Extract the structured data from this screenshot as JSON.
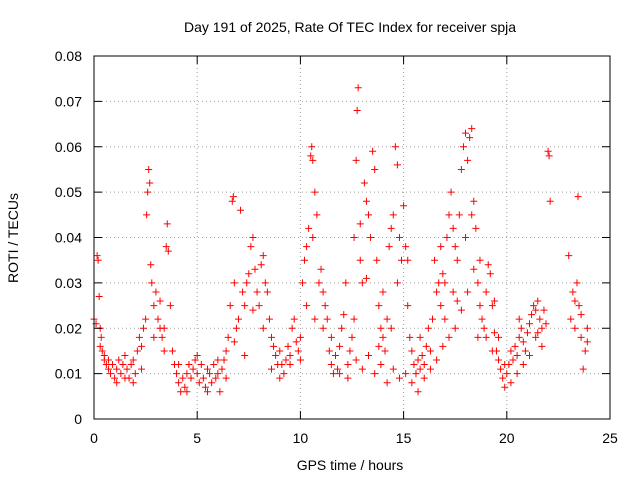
{
  "chart_data": {
    "type": "scatter",
    "title": "Day 191 of 2025, Rate Of TEC Index for receiver spja",
    "xlabel": "GPS time / hours",
    "ylabel": "ROTI / TECUs",
    "xlim": [
      0,
      25
    ],
    "ylim": [
      0,
      0.08
    ],
    "x_ticks": [
      0,
      5,
      10,
      15,
      20,
      25
    ],
    "y_ticks": [
      0,
      0.01,
      0.02,
      0.03,
      0.04,
      0.05,
      0.06,
      0.07,
      0.08
    ],
    "x_tick_labels": [
      "0",
      "5",
      "10",
      "15",
      "20",
      "25"
    ],
    "y_tick_labels": [
      "0",
      "0.01",
      "0.02",
      "0.03",
      "0.04",
      "0.05",
      "0.06",
      "0.07",
      "0.08"
    ],
    "grid": true,
    "marker": "plus",
    "color": "#ff0000",
    "points": [
      [
        0.0,
        0.022
      ],
      [
        0.1,
        0.021
      ],
      [
        0.15,
        0.036
      ],
      [
        0.2,
        0.035
      ],
      [
        0.25,
        0.027
      ],
      [
        0.3,
        0.02
      ],
      [
        0.35,
        0.018
      ],
      [
        0.4,
        0.015
      ],
      [
        0.5,
        0.013
      ],
      [
        0.6,
        0.012
      ],
      [
        0.7,
        0.011
      ],
      [
        0.8,
        0.01
      ],
      [
        0.9,
        0.012
      ],
      [
        1.0,
        0.009
      ],
      [
        1.1,
        0.011
      ],
      [
        1.2,
        0.013
      ],
      [
        1.3,
        0.01
      ],
      [
        1.4,
        0.012
      ],
      [
        1.5,
        0.014
      ],
      [
        1.6,
        0.011
      ],
      [
        1.7,
        0.009
      ],
      [
        1.8,
        0.012
      ],
      [
        1.9,
        0.013
      ],
      [
        2.0,
        0.01
      ],
      [
        2.1,
        0.015
      ],
      [
        2.2,
        0.018
      ],
      [
        2.3,
        0.016
      ],
      [
        2.4,
        0.02
      ],
      [
        2.5,
        0.022
      ],
      [
        2.55,
        0.045
      ],
      [
        2.6,
        0.05
      ],
      [
        2.65,
        0.055
      ],
      [
        2.7,
        0.052
      ],
      [
        2.75,
        0.034
      ],
      [
        2.8,
        0.03
      ],
      [
        2.9,
        0.025
      ],
      [
        3.0,
        0.028
      ],
      [
        3.1,
        0.022
      ],
      [
        3.2,
        0.02
      ],
      [
        3.3,
        0.018
      ],
      [
        3.4,
        0.015
      ],
      [
        3.5,
        0.038
      ],
      [
        3.55,
        0.043
      ],
      [
        3.6,
        0.037
      ],
      [
        3.7,
        0.025
      ],
      [
        3.8,
        0.015
      ],
      [
        3.9,
        0.012
      ],
      [
        4.0,
        0.01
      ],
      [
        4.1,
        0.008
      ],
      [
        4.2,
        0.006
      ],
      [
        4.3,
        0.009
      ],
      [
        4.4,
        0.007
      ],
      [
        4.5,
        0.01
      ],
      [
        4.6,
        0.012
      ],
      [
        4.7,
        0.009
      ],
      [
        4.8,
        0.011
      ],
      [
        4.9,
        0.013
      ],
      [
        5.0,
        0.01
      ],
      [
        5.1,
        0.008
      ],
      [
        5.2,
        0.012
      ],
      [
        5.3,
        0.009
      ],
      [
        5.4,
        0.007
      ],
      [
        5.5,
        0.011
      ],
      [
        5.6,
        0.01
      ],
      [
        5.7,
        0.008
      ],
      [
        5.8,
        0.012
      ],
      [
        5.9,
        0.009
      ],
      [
        6.0,
        0.01
      ],
      [
        6.1,
        0.006
      ],
      [
        6.2,
        0.011
      ],
      [
        6.3,
        0.013
      ],
      [
        6.4,
        0.015
      ],
      [
        6.5,
        0.018
      ],
      [
        6.6,
        0.025
      ],
      [
        6.7,
        0.048
      ],
      [
        6.75,
        0.049
      ],
      [
        6.8,
        0.03
      ],
      [
        6.9,
        0.02
      ],
      [
        7.0,
        0.022
      ],
      [
        7.1,
        0.046
      ],
      [
        7.2,
        0.028
      ],
      [
        7.3,
        0.025
      ],
      [
        7.4,
        0.03
      ],
      [
        7.5,
        0.032
      ],
      [
        7.6,
        0.038
      ],
      [
        7.7,
        0.04
      ],
      [
        7.8,
        0.033
      ],
      [
        7.9,
        0.028
      ],
      [
        8.0,
        0.025
      ],
      [
        8.1,
        0.034
      ],
      [
        8.2,
        0.036
      ],
      [
        8.3,
        0.03
      ],
      [
        8.4,
        0.028
      ],
      [
        8.5,
        0.022
      ],
      [
        8.6,
        0.018
      ],
      [
        8.7,
        0.016
      ],
      [
        8.8,
        0.014
      ],
      [
        8.9,
        0.012
      ],
      [
        9.0,
        0.015
      ],
      [
        9.1,
        0.012
      ],
      [
        9.2,
        0.01
      ],
      [
        9.3,
        0.013
      ],
      [
        9.4,
        0.016
      ],
      [
        9.5,
        0.014
      ],
      [
        9.6,
        0.02
      ],
      [
        9.7,
        0.022
      ],
      [
        9.8,
        0.017
      ],
      [
        9.9,
        0.015
      ],
      [
        10.0,
        0.013
      ],
      [
        10.1,
        0.03
      ],
      [
        10.2,
        0.035
      ],
      [
        10.3,
        0.038
      ],
      [
        10.4,
        0.042
      ],
      [
        10.5,
        0.058
      ],
      [
        10.55,
        0.06
      ],
      [
        10.6,
        0.057
      ],
      [
        10.7,
        0.05
      ],
      [
        10.8,
        0.045
      ],
      [
        10.9,
        0.03
      ],
      [
        11.0,
        0.033
      ],
      [
        11.1,
        0.028
      ],
      [
        11.2,
        0.025
      ],
      [
        11.3,
        0.022
      ],
      [
        11.4,
        0.015
      ],
      [
        11.5,
        0.012
      ],
      [
        11.6,
        0.01
      ],
      [
        11.7,
        0.014
      ],
      [
        11.8,
        0.011
      ],
      [
        11.9,
        0.016
      ],
      [
        12.0,
        0.02
      ],
      [
        12.1,
        0.023
      ],
      [
        12.2,
        0.03
      ],
      [
        12.3,
        0.012
      ],
      [
        12.4,
        0.015
      ],
      [
        12.5,
        0.018
      ],
      [
        12.6,
        0.04
      ],
      [
        12.7,
        0.057
      ],
      [
        12.75,
        0.068
      ],
      [
        12.8,
        0.073
      ],
      [
        12.9,
        0.035
      ],
      [
        13.0,
        0.03
      ],
      [
        13.1,
        0.052
      ],
      [
        13.2,
        0.048
      ],
      [
        13.3,
        0.045
      ],
      [
        13.4,
        0.04
      ],
      [
        13.5,
        0.059
      ],
      [
        13.6,
        0.055
      ],
      [
        13.7,
        0.035
      ],
      [
        13.8,
        0.025
      ],
      [
        13.9,
        0.02
      ],
      [
        14.0,
        0.018
      ],
      [
        14.1,
        0.015
      ],
      [
        14.2,
        0.022
      ],
      [
        14.3,
        0.038
      ],
      [
        14.4,
        0.042
      ],
      [
        14.5,
        0.045
      ],
      [
        14.6,
        0.06
      ],
      [
        14.7,
        0.056
      ],
      [
        14.8,
        0.04
      ],
      [
        14.9,
        0.035
      ],
      [
        15.0,
        0.047
      ],
      [
        15.1,
        0.038
      ],
      [
        15.2,
        0.025
      ],
      [
        15.3,
        0.018
      ],
      [
        15.4,
        0.015
      ],
      [
        15.5,
        0.012
      ],
      [
        15.6,
        0.01
      ],
      [
        15.7,
        0.013
      ],
      [
        15.8,
        0.011
      ],
      [
        15.9,
        0.014
      ],
      [
        16.0,
        0.012
      ],
      [
        16.1,
        0.016
      ],
      [
        16.2,
        0.02
      ],
      [
        16.3,
        0.015
      ],
      [
        16.4,
        0.022
      ],
      [
        16.5,
        0.035
      ],
      [
        16.6,
        0.028
      ],
      [
        16.7,
        0.03
      ],
      [
        16.8,
        0.038
      ],
      [
        16.9,
        0.032
      ],
      [
        17.0,
        0.03
      ],
      [
        17.1,
        0.04
      ],
      [
        17.2,
        0.045
      ],
      [
        17.3,
        0.05
      ],
      [
        17.4,
        0.042
      ],
      [
        17.5,
        0.038
      ],
      [
        17.6,
        0.035
      ],
      [
        17.7,
        0.045
      ],
      [
        17.8,
        0.055
      ],
      [
        17.9,
        0.06
      ],
      [
        18.0,
        0.063
      ],
      [
        18.1,
        0.057
      ],
      [
        18.2,
        0.062
      ],
      [
        18.3,
        0.064
      ],
      [
        18.4,
        0.048
      ],
      [
        18.5,
        0.042
      ],
      [
        18.6,
        0.03
      ],
      [
        18.7,
        0.025
      ],
      [
        18.8,
        0.022
      ],
      [
        18.9,
        0.02
      ],
      [
        19.0,
        0.018
      ],
      [
        19.1,
        0.034
      ],
      [
        19.2,
        0.032
      ],
      [
        19.3,
        0.025
      ],
      [
        19.4,
        0.019
      ],
      [
        19.5,
        0.015
      ],
      [
        19.6,
        0.013
      ],
      [
        19.7,
        0.011
      ],
      [
        19.8,
        0.009
      ],
      [
        19.9,
        0.007
      ],
      [
        20.0,
        0.01
      ],
      [
        20.1,
        0.012
      ],
      [
        20.2,
        0.015
      ],
      [
        20.3,
        0.013
      ],
      [
        20.4,
        0.016
      ],
      [
        20.5,
        0.014
      ],
      [
        20.6,
        0.018
      ],
      [
        20.7,
        0.02
      ],
      [
        20.8,
        0.017
      ],
      [
        20.9,
        0.015
      ],
      [
        21.0,
        0.019
      ],
      [
        21.1,
        0.021
      ],
      [
        21.2,
        0.023
      ],
      [
        21.3,
        0.025
      ],
      [
        21.4,
        0.024
      ],
      [
        21.5,
        0.026
      ],
      [
        21.6,
        0.022
      ],
      [
        21.7,
        0.02
      ],
      [
        21.8,
        0.024
      ],
      [
        21.9,
        0.021
      ],
      [
        22.0,
        0.059
      ],
      [
        22.05,
        0.058
      ],
      [
        22.1,
        0.048
      ],
      [
        23.0,
        0.036
      ],
      [
        23.1,
        0.022
      ],
      [
        23.2,
        0.028
      ],
      [
        23.3,
        0.026
      ],
      [
        23.4,
        0.03
      ],
      [
        23.45,
        0.049
      ],
      [
        23.5,
        0.025
      ],
      [
        23.6,
        0.018
      ],
      [
        23.7,
        0.011
      ],
      [
        23.8,
        0.015
      ],
      [
        23.9,
        0.02
      ],
      [
        0.3,
        0.016
      ],
      [
        0.5,
        0.014
      ],
      [
        0.7,
        0.013
      ],
      [
        1.1,
        0.008
      ],
      [
        1.5,
        0.009
      ],
      [
        1.9,
        0.008
      ],
      [
        2.3,
        0.011
      ],
      [
        2.9,
        0.018
      ],
      [
        3.2,
        0.026
      ],
      [
        3.4,
        0.02
      ],
      [
        4.1,
        0.012
      ],
      [
        4.5,
        0.006
      ],
      [
        5.0,
        0.014
      ],
      [
        5.5,
        0.006
      ],
      [
        6.0,
        0.013
      ],
      [
        6.4,
        0.009
      ],
      [
        6.8,
        0.017
      ],
      [
        7.3,
        0.014
      ],
      [
        7.7,
        0.024
      ],
      [
        8.2,
        0.02
      ],
      [
        8.6,
        0.011
      ],
      [
        9.0,
        0.009
      ],
      [
        9.5,
        0.012
      ],
      [
        10.0,
        0.018
      ],
      [
        10.3,
        0.025
      ],
      [
        10.7,
        0.022
      ],
      [
        11.1,
        0.02
      ],
      [
        11.5,
        0.018
      ],
      [
        11.9,
        0.01
      ],
      [
        12.3,
        0.009
      ],
      [
        12.7,
        0.013
      ],
      [
        13.0,
        0.011
      ],
      [
        13.3,
        0.014
      ],
      [
        13.6,
        0.01
      ],
      [
        13.9,
        0.012
      ],
      [
        14.2,
        0.008
      ],
      [
        14.5,
        0.011
      ],
      [
        14.8,
        0.009
      ],
      [
        15.1,
        0.01
      ],
      [
        15.4,
        0.008
      ],
      [
        15.7,
        0.006
      ],
      [
        16.0,
        0.009
      ],
      [
        16.3,
        0.011
      ],
      [
        16.6,
        0.013
      ],
      [
        16.9,
        0.016
      ],
      [
        17.2,
        0.018
      ],
      [
        17.5,
        0.02
      ],
      [
        17.8,
        0.024
      ],
      [
        18.1,
        0.028
      ],
      [
        18.4,
        0.033
      ],
      [
        18.7,
        0.035
      ],
      [
        19.0,
        0.028
      ],
      [
        19.3,
        0.015
      ],
      [
        19.6,
        0.018
      ],
      [
        19.9,
        0.012
      ],
      [
        20.2,
        0.008
      ],
      [
        20.5,
        0.01
      ],
      [
        20.8,
        0.012
      ],
      [
        21.1,
        0.014
      ],
      [
        21.4,
        0.018
      ],
      [
        21.7,
        0.016
      ],
      [
        23.3,
        0.02
      ],
      [
        23.6,
        0.023
      ],
      [
        23.9,
        0.017
      ],
      [
        10.6,
        0.04
      ],
      [
        12.9,
        0.043
      ],
      [
        13.2,
        0.031
      ],
      [
        14.0,
        0.028
      ],
      [
        14.7,
        0.03
      ],
      [
        15.2,
        0.035
      ],
      [
        16.8,
        0.025
      ],
      [
        17.4,
        0.028
      ],
      [
        18.0,
        0.04
      ],
      [
        18.6,
        0.018
      ],
      [
        12.6,
        0.022
      ],
      [
        13.8,
        0.016
      ],
      [
        14.4,
        0.02
      ],
      [
        15.8,
        0.018
      ],
      [
        17.0,
        0.022
      ],
      [
        17.6,
        0.026
      ],
      [
        18.3,
        0.045
      ],
      [
        19.4,
        0.026
      ],
      [
        20.6,
        0.022
      ],
      [
        21.5,
        0.019
      ]
    ]
  }
}
